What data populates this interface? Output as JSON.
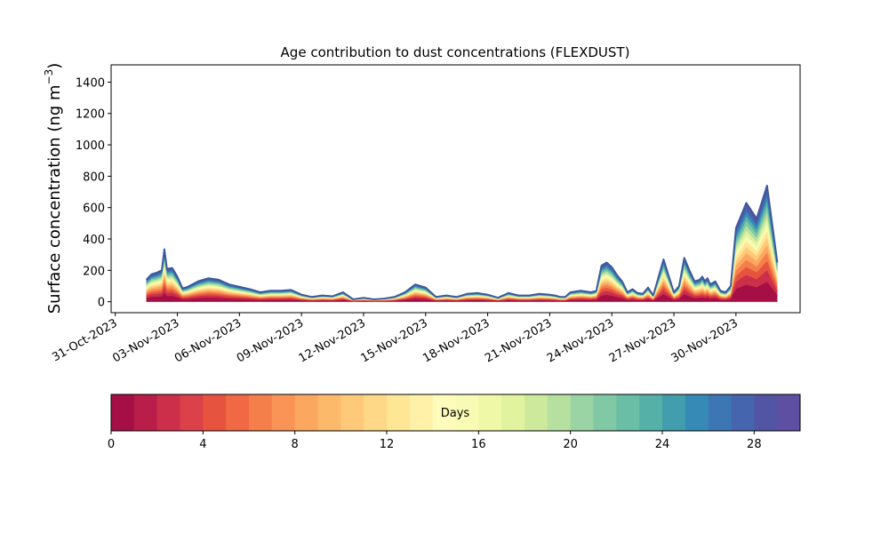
{
  "chart_data": {
    "type": "area",
    "title": "Age contribution to dust concentrations (FLEXDUST)",
    "ylabel_main": "Surface concentration (ng m",
    "ylabel_sup": "−3",
    "ylabel_close": ")",
    "xlabel": "",
    "ylim": [
      -70,
      1510
    ],
    "yticks": [
      0,
      200,
      400,
      600,
      800,
      1000,
      1200,
      1400
    ],
    "xlim": [
      "2023-10-30T19:12",
      "2023-12-03T02:24"
    ],
    "xticks": [
      "31-Oct-2023",
      "03-Nov-2023",
      "06-Nov-2023",
      "09-Nov-2023",
      "12-Nov-2023",
      "15-Nov-2023",
      "18-Nov-2023",
      "21-Nov-2023",
      "24-Nov-2023",
      "27-Nov-2023",
      "30-Nov-2023"
    ],
    "tick_dates": [
      "2023-10-31",
      "2023-11-03",
      "2023-11-06",
      "2023-11-09",
      "2023-11-12",
      "2023-11-15",
      "2023-11-18",
      "2023-11-21",
      "2023-11-24",
      "2023-11-27",
      "2023-11-30"
    ],
    "total": {
      "x": [
        "2023-11-01T12:00",
        "2023-11-01T18:00",
        "2023-11-02T00:00",
        "2023-11-02T06:00",
        "2023-11-02T09:00",
        "2023-11-02T12:00",
        "2023-11-02T18:00",
        "2023-11-03T00:00",
        "2023-11-03T06:00",
        "2023-11-03T12:00",
        "2023-11-04T00:00",
        "2023-11-04T12:00",
        "2023-11-05T00:00",
        "2023-11-05T12:00",
        "2023-11-06T00:00",
        "2023-11-06T12:00",
        "2023-11-07T00:00",
        "2023-11-07T12:00",
        "2023-11-08T00:00",
        "2023-11-08T12:00",
        "2023-11-09T00:00",
        "2023-11-09T12:00",
        "2023-11-10T00:00",
        "2023-11-10T12:00",
        "2023-11-11T00:00",
        "2023-11-11T12:00",
        "2023-11-12T00:00",
        "2023-11-12T12:00",
        "2023-11-13T00:00",
        "2023-11-13T12:00",
        "2023-11-14T00:00",
        "2023-11-14T12:00",
        "2023-11-15T00:00",
        "2023-11-15T12:00",
        "2023-11-16T00:00",
        "2023-11-16T12:00",
        "2023-11-17T00:00",
        "2023-11-17T12:00",
        "2023-11-18T00:00",
        "2023-11-18T12:00",
        "2023-11-19T00:00",
        "2023-11-19T12:00",
        "2023-11-20T00:00",
        "2023-11-20T12:00",
        "2023-11-21T00:00",
        "2023-11-21T06:00",
        "2023-11-21T12:00",
        "2023-11-21T18:00",
        "2023-11-22T00:00",
        "2023-11-22T12:00",
        "2023-11-23T00:00",
        "2023-11-23T06:00",
        "2023-11-23T12:00",
        "2023-11-23T18:00",
        "2023-11-24T00:00",
        "2023-11-24T06:00",
        "2023-11-24T12:00",
        "2023-11-24T18:00",
        "2023-11-25T00:00",
        "2023-11-25T06:00",
        "2023-11-25T12:00",
        "2023-11-25T18:00",
        "2023-11-26T00:00",
        "2023-11-26T12:00",
        "2023-11-27T00:00",
        "2023-11-27T06:00",
        "2023-11-27T12:00",
        "2023-11-27T18:00",
        "2023-11-28T00:00",
        "2023-11-28T06:00",
        "2023-11-28T09:00",
        "2023-11-28T12:00",
        "2023-11-28T15:00",
        "2023-11-28T18:00",
        "2023-11-29T00:00",
        "2023-11-29T06:00",
        "2023-11-29T12:00",
        "2023-11-29T18:00",
        "2023-11-30T00:00",
        "2023-11-30T12:00",
        "2023-12-01T00:00",
        "2023-12-01T12:00",
        "2023-12-02T00:00"
      ],
      "y": [
        140,
        175,
        185,
        200,
        335,
        210,
        215,
        160,
        85,
        95,
        130,
        150,
        140,
        110,
        95,
        80,
        60,
        70,
        70,
        75,
        45,
        30,
        40,
        35,
        60,
        15,
        25,
        15,
        20,
        30,
        60,
        110,
        90,
        30,
        40,
        30,
        50,
        55,
        45,
        25,
        55,
        40,
        40,
        50,
        45,
        40,
        30,
        30,
        60,
        70,
        60,
        70,
        230,
        250,
        220,
        170,
        130,
        60,
        80,
        55,
        50,
        90,
        40,
        270,
        60,
        100,
        280,
        200,
        130,
        140,
        160,
        130,
        150,
        110,
        130,
        70,
        60,
        100,
        470,
        630,
        530,
        740,
        250
      ]
    },
    "colorbar": {
      "label": "Days",
      "min": 0,
      "max": 30,
      "ticks": [
        0,
        4,
        8,
        12,
        16,
        20,
        24,
        28
      ],
      "colors": [
        "#a50f45",
        "#b91d49",
        "#cc2f4a",
        "#db4149",
        "#e65440",
        "#f06944",
        "#f57f4b",
        "#f99356",
        "#fba75f",
        "#fdb96a",
        "#fec978",
        "#fed886",
        "#fee695",
        "#fff1a8",
        "#fffbbb",
        "#f8fbb4",
        "#eef8a6",
        "#e1f39e",
        "#cdea9c",
        "#b6e0a0",
        "#9ad4a4",
        "#80c9a4",
        "#69bea5",
        "#55b0a8",
        "#429ead",
        "#368bb6",
        "#3c77b4",
        "#4565ae",
        "#5155a4",
        "#5e4fa2"
      ]
    },
    "line_color": "#3d5a9e"
  }
}
